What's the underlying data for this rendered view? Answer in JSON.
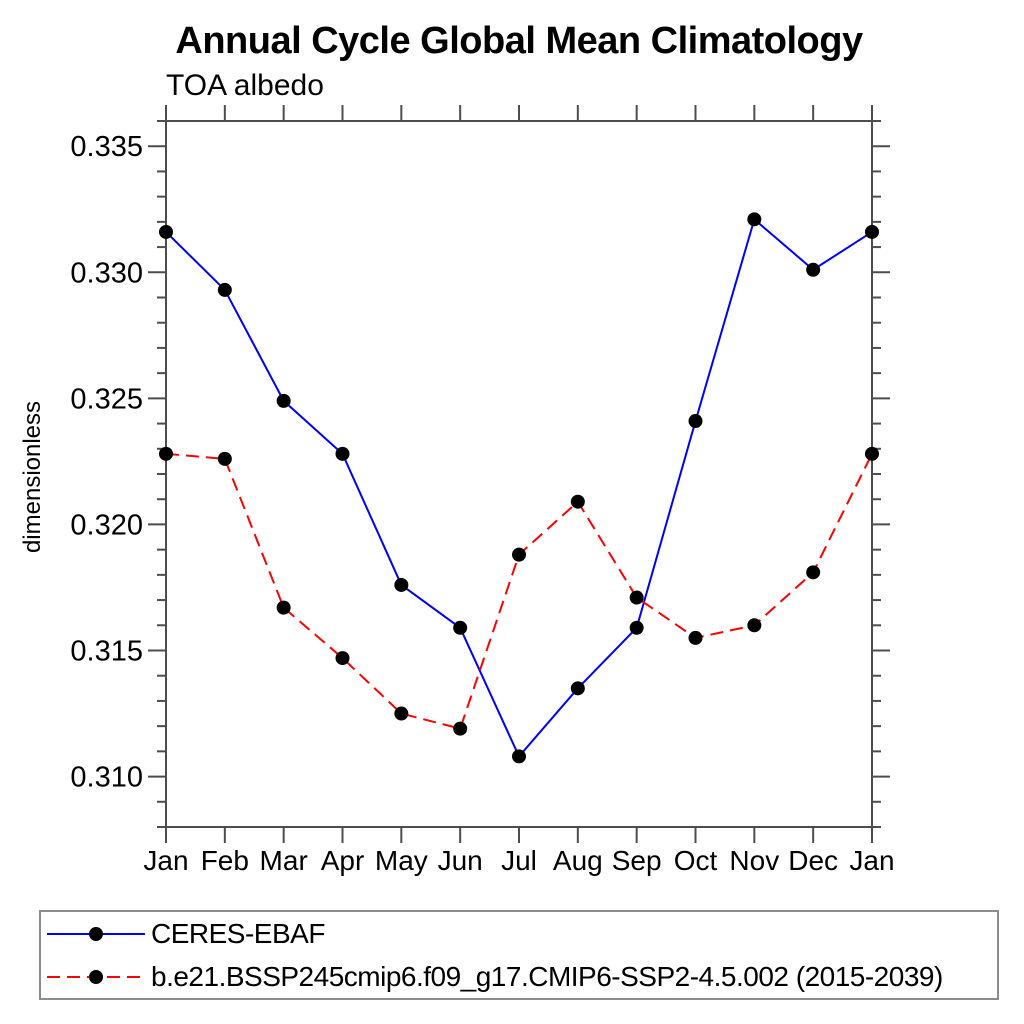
{
  "chart_data": {
    "type": "line",
    "title": "Annual Cycle Global Mean Climatology",
    "subtitle": "TOA albedo",
    "ylabel": "dimensionless",
    "xlabel": "",
    "categories": [
      "Jan",
      "Feb",
      "Mar",
      "Apr",
      "May",
      "Jun",
      "Jul",
      "Aug",
      "Sep",
      "Oct",
      "Nov",
      "Dec",
      "Jan"
    ],
    "series": [
      {
        "name": "CERES-EBAF",
        "color": "#0000ff",
        "line_style": "solid",
        "marker": "circle",
        "marker_color": "#000000",
        "values": [
          0.3316,
          0.3293,
          0.3249,
          0.3228,
          0.3176,
          0.3159,
          0.3108,
          0.3135,
          0.3159,
          0.3241,
          0.3321,
          0.3301,
          0.3316
        ]
      },
      {
        "name": "b.e21.BSSP245cmip6.f09_g17.CMIP6-SSP2-4.5.002 (2015-2039)",
        "color": "#ff0000",
        "line_style": "dashed",
        "marker": "circle",
        "marker_color": "#000000",
        "values": [
          0.3228,
          0.3226,
          0.3167,
          0.3147,
          0.3125,
          0.3119,
          0.3188,
          0.3209,
          0.3171,
          0.3155,
          0.316,
          0.3181,
          0.3228
        ]
      }
    ],
    "ylim": [
      0.308,
      0.336
    ],
    "y_ticks": [
      {
        "value": 0.31,
        "label": "0.310"
      },
      {
        "value": 0.315,
        "label": "0.315"
      },
      {
        "value": 0.32,
        "label": "0.320"
      },
      {
        "value": 0.325,
        "label": "0.325"
      },
      {
        "value": 0.33,
        "label": "0.330"
      },
      {
        "value": 0.335,
        "label": "0.335"
      }
    ],
    "y_minor_step": 0.001,
    "grid": false,
    "legend_position": "bottom",
    "axis_color": "#4d4d4d",
    "legend_border_color": "#8c8c8c"
  }
}
